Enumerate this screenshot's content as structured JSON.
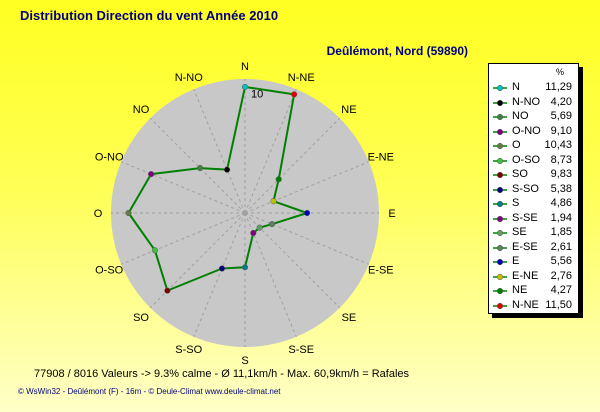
{
  "header": {
    "title": "Distribution Direction du vent   Année 2010",
    "station": "Deûlémont, Nord (59890)"
  },
  "footer": {
    "stats": "77908 / 8016 Valeurs  -> 9.3% calme   -   Ø 11,1km/h  -  Max. 60,9km/h = Rafales",
    "credits": "© WsWin32  -  Deûlémont (F) - 16m  -  © Deule-Climat  www.deule-climat.net"
  },
  "chart_data": {
    "type": "radar",
    "title": "Distribution Direction du vent   Année 2010",
    "unit": "%",
    "radial_max": 12,
    "radial_tick_label": "10",
    "axis_color": "#000000",
    "series_color": "#008000",
    "directions": [
      "N",
      "N-NE",
      "NE",
      "E-NE",
      "E",
      "E-SE",
      "SE",
      "S-SE",
      "S",
      "S-SO",
      "SO",
      "O-SO",
      "O",
      "O-NO",
      "NO",
      "N-NO"
    ],
    "values": [
      11.29,
      11.5,
      4.27,
      2.76,
      5.56,
      2.61,
      1.85,
      1.94,
      4.86,
      5.38,
      9.83,
      8.73,
      10.43,
      9.1,
      5.69,
      4.2
    ],
    "marker_colors": [
      "#00C0C0",
      "#E00000",
      "#008000",
      "#C0C000",
      "#0000C0",
      "#608060",
      "#60A060",
      "#800080",
      "#008080",
      "#000080",
      "#800000",
      "#40C040",
      "#608040",
      "#800080",
      "#408040",
      "#000000"
    ],
    "legend": [
      {
        "name": "N",
        "value": "11,29",
        "color": "#00C0C0"
      },
      {
        "name": "N-NO",
        "value": "4,20",
        "color": "#000000"
      },
      {
        "name": "NO",
        "value": "5,69",
        "color": "#408040"
      },
      {
        "name": "O-NO",
        "value": "9,10",
        "color": "#800080"
      },
      {
        "name": "O",
        "value": "10,43",
        "color": "#608040"
      },
      {
        "name": "O-SO",
        "value": "8,73",
        "color": "#40C040"
      },
      {
        "name": "SO",
        "value": "9,83",
        "color": "#800000"
      },
      {
        "name": "S-SO",
        "value": "5,38",
        "color": "#000080"
      },
      {
        "name": "S",
        "value": "4,86",
        "color": "#008080"
      },
      {
        "name": "S-SE",
        "value": "1,94",
        "color": "#800080"
      },
      {
        "name": "SE",
        "value": "1,85",
        "color": "#60A060"
      },
      {
        "name": "E-SE",
        "value": "2,61",
        "color": "#608060"
      },
      {
        "name": "E",
        "value": "5,56",
        "color": "#0000C0"
      },
      {
        "name": "E-NE",
        "value": "2,76",
        "color": "#C0C000"
      },
      {
        "name": "NE",
        "value": "4,27",
        "color": "#008000"
      },
      {
        "name": "N-NE",
        "value": "11,50",
        "color": "#E00000"
      }
    ],
    "legend_header": "%"
  }
}
